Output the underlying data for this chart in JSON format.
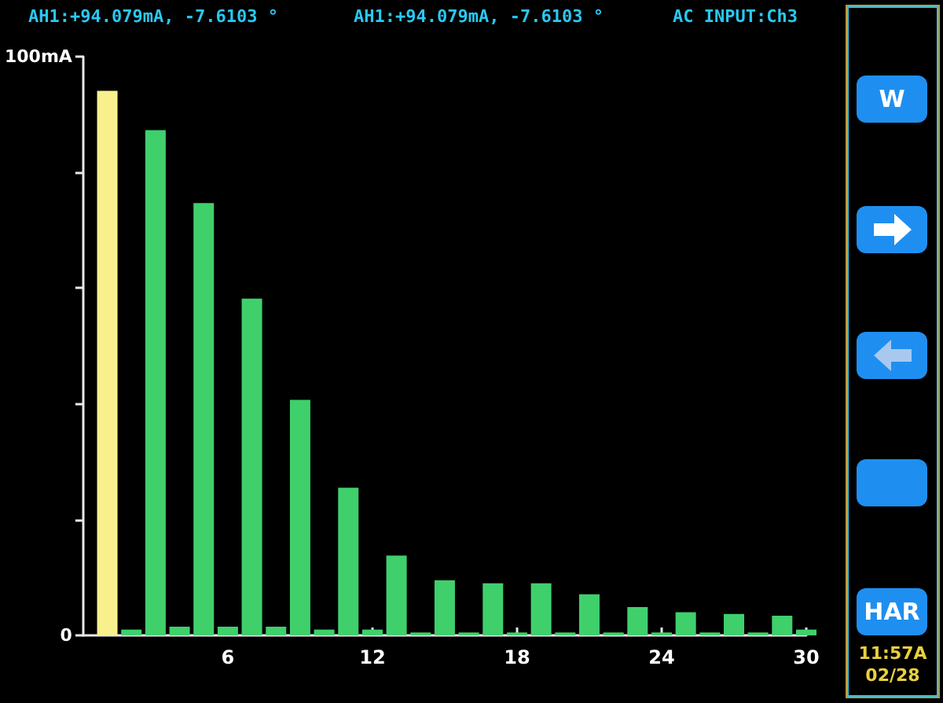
{
  "chart_data": {
    "type": "bar",
    "title": "AH1:+94.079mA, -7.6103 °",
    "annotations": [
      "AH1:+94.079mA, -7.6103 °",
      "AC INPUT:Ch3",
      "W",
      "HAR",
      "11:57A",
      "02/28"
    ],
    "x": [
      1,
      2,
      3,
      4,
      5,
      6,
      7,
      8,
      9,
      10,
      11,
      12,
      13,
      14,
      15,
      16,
      17,
      18,
      19,
      20,
      21,
      22,
      23,
      24,
      25,
      26,
      27,
      28,
      29,
      30
    ],
    "values": [
      94.1,
      1,
      87.3,
      1.5,
      74.7,
      1.5,
      58.2,
      1.5,
      40.7,
      1,
      25.5,
      1,
      13.8,
      0.5,
      9.5,
      0.5,
      9,
      0.5,
      9,
      0.5,
      7.1,
      0.5,
      4.9,
      0.5,
      4,
      0.5,
      3.7,
      0.5,
      3.4,
      1
    ],
    "colors": [
      "#f8f08c",
      "#3fd06c",
      "#3fd06c",
      "#3fd06c",
      "#3fd06c",
      "#3fd06c",
      "#3fd06c",
      "#3fd06c",
      "#3fd06c",
      "#3fd06c",
      "#3fd06c",
      "#3fd06c",
      "#3fd06c",
      "#3fd06c",
      "#3fd06c",
      "#3fd06c",
      "#3fd06c",
      "#3fd06c",
      "#3fd06c",
      "#3fd06c",
      "#3fd06c",
      "#3fd06c",
      "#3fd06c",
      "#3fd06c",
      "#3fd06c",
      "#3fd06c",
      "#3fd06c",
      "#3fd06c",
      "#3fd06c",
      "#3fd06c"
    ],
    "xlim": [
      0,
      30
    ],
    "xticks": [
      6,
      12,
      18,
      24,
      30
    ],
    "ylim": [
      0,
      100
    ],
    "yticks": [
      {
        "value": 0,
        "label": "0"
      },
      {
        "value": 20,
        "label": null
      },
      {
        "value": 40,
        "label": null
      },
      {
        "value": 60,
        "label": null
      },
      {
        "value": 80,
        "label": null
      },
      {
        "value": 100,
        "label": "100mA"
      }
    ],
    "xlabel": null
  }
}
